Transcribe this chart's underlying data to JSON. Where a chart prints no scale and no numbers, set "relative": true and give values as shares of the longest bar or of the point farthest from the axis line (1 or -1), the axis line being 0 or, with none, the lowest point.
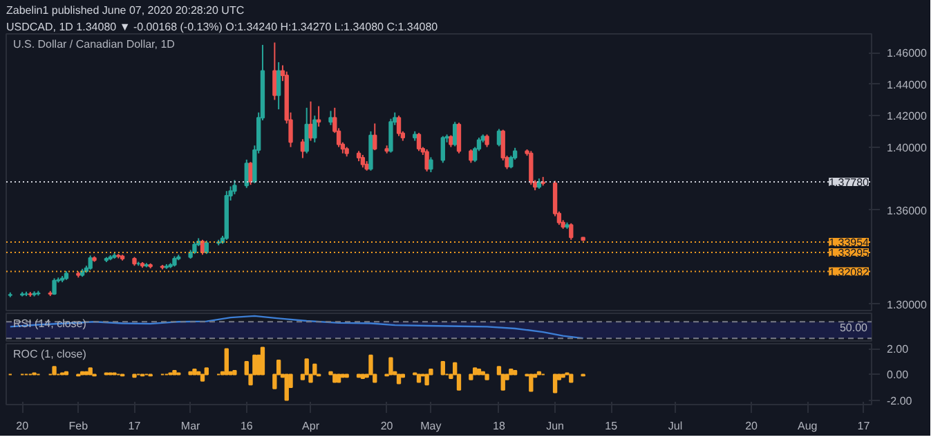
{
  "chart_data": [
    {
      "type": "candlestick",
      "title": "U.S. Dollar / Canadian Dollar, 1D",
      "annotations": [
        "Zabelin1 published June 07, 2020 20:28:20 UTC",
        "USDCAD, 1D 1.34080 ▼ -0.00168 (-0.13%) O:1.34240 H:1.34270 L:1.34080 C:1.34080"
      ],
      "x": [
        "2020-01-17",
        "2020-01-20",
        "2020-01-21",
        "2020-01-22",
        "2020-01-23",
        "2020-01-24",
        "2020-01-27",
        "2020-01-28",
        "2020-01-29",
        "2020-01-30",
        "2020-01-31",
        "2020-02-03",
        "2020-02-04",
        "2020-02-05",
        "2020-02-06",
        "2020-02-07",
        "2020-02-10",
        "2020-02-11",
        "2020-02-12",
        "2020-02-13",
        "2020-02-14",
        "2020-02-17",
        "2020-02-18",
        "2020-02-19",
        "2020-02-20",
        "2020-02-21",
        "2020-02-24",
        "2020-02-25",
        "2020-02-26",
        "2020-02-27",
        "2020-02-28",
        "2020-03-02",
        "2020-03-03",
        "2020-03-04",
        "2020-03-05",
        "2020-03-06",
        "2020-03-09",
        "2020-03-10",
        "2020-03-11",
        "2020-03-12",
        "2020-03-13",
        "2020-03-16",
        "2020-03-17",
        "2020-03-18",
        "2020-03-19",
        "2020-03-20",
        "2020-03-23",
        "2020-03-24",
        "2020-03-25",
        "2020-03-26",
        "2020-03-27",
        "2020-03-30",
        "2020-03-31",
        "2020-04-01",
        "2020-04-02",
        "2020-04-03",
        "2020-04-06",
        "2020-04-07",
        "2020-04-08",
        "2020-04-09",
        "2020-04-10",
        "2020-04-13",
        "2020-04-14",
        "2020-04-15",
        "2020-04-16",
        "2020-04-17",
        "2020-04-20",
        "2020-04-21",
        "2020-04-22",
        "2020-04-23",
        "2020-04-24",
        "2020-04-27",
        "2020-04-28",
        "2020-04-29",
        "2020-04-30",
        "2020-05-01",
        "2020-05-04",
        "2020-05-05",
        "2020-05-06",
        "2020-05-07",
        "2020-05-08",
        "2020-05-11",
        "2020-05-12",
        "2020-05-13",
        "2020-05-14",
        "2020-05-15",
        "2020-05-18",
        "2020-05-19",
        "2020-05-20",
        "2020-05-21",
        "2020-05-22",
        "2020-05-25",
        "2020-05-26",
        "2020-05-27",
        "2020-05-28",
        "2020-05-29",
        "2020-06-01",
        "2020-06-02",
        "2020-06-03",
        "2020-06-04",
        "2020-06-05",
        "2020-06-08"
      ],
      "ohlc": [
        [
          1.3058,
          1.3075,
          1.3045,
          1.306
        ],
        [
          1.306,
          1.3078,
          1.305,
          1.3064
        ],
        [
          1.3064,
          1.308,
          1.3052,
          1.3065
        ],
        [
          1.3065,
          1.3078,
          1.3048,
          1.3062
        ],
        [
          1.3062,
          1.3082,
          1.305,
          1.3068
        ],
        [
          1.3068,
          1.3085,
          1.3055,
          1.307
        ],
        [
          1.307,
          1.3084,
          1.3052,
          1.3066
        ],
        [
          1.3066,
          1.3165,
          1.306,
          1.315
        ],
        [
          1.315,
          1.317,
          1.3138,
          1.3155
        ],
        [
          1.3155,
          1.318,
          1.314,
          1.3165
        ],
        [
          1.3165,
          1.321,
          1.3155,
          1.3195
        ],
        [
          1.3195,
          1.3208,
          1.317,
          1.3185
        ],
        [
          1.3185,
          1.3225,
          1.3175,
          1.321
        ],
        [
          1.321,
          1.3245,
          1.32,
          1.323
        ],
        [
          1.323,
          1.331,
          1.322,
          1.3294
        ],
        [
          1.3294,
          1.3305,
          1.327,
          1.328
        ],
        [
          1.328,
          1.33,
          1.3268,
          1.329
        ],
        [
          1.329,
          1.3312,
          1.328,
          1.33
        ],
        [
          1.33,
          1.3325,
          1.329,
          1.331
        ],
        [
          1.331,
          1.332,
          1.3292,
          1.3305
        ],
        [
          1.3305,
          1.3315,
          1.3278,
          1.329
        ],
        [
          1.329,
          1.33,
          1.3245,
          1.3258
        ],
        [
          1.3258,
          1.327,
          1.3245,
          1.3258
        ],
        [
          1.3258,
          1.3268,
          1.3232,
          1.3245
        ],
        [
          1.3245,
          1.3262,
          1.3235,
          1.325
        ],
        [
          1.325,
          1.326,
          1.3228,
          1.324
        ],
        [
          1.324,
          1.325,
          1.3222,
          1.3235
        ],
        [
          1.3235,
          1.3255,
          1.3225,
          1.324
        ],
        [
          1.324,
          1.3262,
          1.323,
          1.325
        ],
        [
          1.325,
          1.3305,
          1.324,
          1.329
        ],
        [
          1.329,
          1.3315,
          1.328,
          1.33
        ],
        [
          1.33,
          1.3345,
          1.329,
          1.333
        ],
        [
          1.333,
          1.3395,
          1.332,
          1.338
        ],
        [
          1.338,
          1.342,
          1.337,
          1.34
        ],
        [
          1.34,
          1.341,
          1.3315,
          1.333
        ],
        [
          1.333,
          1.3405,
          1.332,
          1.339
        ],
        [
          1.339,
          1.341,
          1.3375,
          1.3395
        ],
        [
          1.3395,
          1.3435,
          1.3385,
          1.342
        ],
        [
          1.342,
          1.372,
          1.341,
          1.369
        ],
        [
          1.369,
          1.375,
          1.366,
          1.372
        ],
        [
          1.372,
          1.379,
          1.37,
          1.3755
        ],
        [
          1.3755,
          1.392,
          1.374,
          1.3896
        ],
        [
          1.3896,
          1.3905,
          1.376,
          1.378
        ],
        [
          1.378,
          1.401,
          1.377,
          1.3981
        ],
        [
          1.3981,
          1.422,
          1.396,
          1.4187
        ],
        [
          1.4187,
          1.465,
          1.417,
          1.4485
        ],
        [
          1.4485,
          1.4665,
          1.43,
          1.433
        ],
        [
          1.433,
          1.454,
          1.424,
          1.4485
        ],
        [
          1.4485,
          1.452,
          1.442,
          1.4456
        ],
        [
          1.4456,
          1.448,
          1.415,
          1.4172
        ],
        [
          1.4172,
          1.422,
          1.4,
          1.4031
        ],
        [
          1.4031,
          1.405,
          1.393,
          1.3974
        ],
        [
          1.3974,
          1.425,
          1.396,
          1.4144
        ],
        [
          1.4144,
          1.429,
          1.404,
          1.4059
        ],
        [
          1.4059,
          1.42,
          1.403,
          1.4172
        ],
        [
          1.4172,
          1.426,
          1.413,
          1.416
        ],
        [
          1.416,
          1.423,
          1.414,
          1.4187
        ],
        [
          1.4187,
          1.425,
          1.409,
          1.4101
        ],
        [
          1.4101,
          1.412,
          1.4,
          1.4017
        ],
        [
          1.4017,
          1.403,
          1.396,
          1.3988
        ],
        [
          1.3988,
          1.4,
          1.394,
          1.396
        ],
        [
          1.396,
          1.3975,
          1.391,
          1.3932
        ],
        [
          1.3932,
          1.395,
          1.387,
          1.3889
        ],
        [
          1.3889,
          1.391,
          1.385,
          1.3861
        ],
        [
          1.3861,
          1.41,
          1.385,
          1.4074
        ],
        [
          1.4074,
          1.415,
          1.398,
          1.3989
        ],
        [
          1.3989,
          1.401,
          1.396,
          1.3975
        ],
        [
          1.3975,
          1.418,
          1.3965,
          1.416
        ],
        [
          1.416,
          1.422,
          1.414,
          1.4187
        ],
        [
          1.4187,
          1.42,
          1.407,
          1.4087
        ],
        [
          1.4087,
          1.41,
          1.404,
          1.406
        ],
        [
          1.406,
          1.41,
          1.404,
          1.408
        ],
        [
          1.408,
          1.409,
          1.3975,
          1.399
        ],
        [
          1.399,
          1.4,
          1.395,
          1.397
        ],
        [
          1.397,
          1.3985,
          1.3845,
          1.3861
        ],
        [
          1.3861,
          1.3935,
          1.384,
          1.3917
        ],
        [
          1.3917,
          1.407,
          1.39,
          1.4059
        ],
        [
          1.4059,
          1.408,
          1.403,
          1.4065
        ],
        [
          1.4065,
          1.4075,
          1.4,
          1.4017
        ],
        [
          1.4017,
          1.416,
          1.4005,
          1.4144
        ],
        [
          1.4144,
          1.4155,
          1.396,
          1.3974
        ],
        [
          1.3974,
          1.3985,
          1.39,
          1.3917
        ],
        [
          1.3917,
          1.4,
          1.3905,
          1.3988
        ],
        [
          1.3988,
          1.406,
          1.3975,
          1.4045
        ],
        [
          1.4045,
          1.408,
          1.403,
          1.4068
        ],
        [
          1.4068,
          1.408,
          1.4,
          1.4017
        ],
        [
          1.4017,
          1.4115,
          1.4005,
          1.4101
        ],
        [
          1.4101,
          1.411,
          1.3915,
          1.3932
        ],
        [
          1.3932,
          1.3945,
          1.386,
          1.3875
        ],
        [
          1.3875,
          1.3945,
          1.3865,
          1.3932
        ],
        [
          1.3932,
          1.3995,
          1.392,
          1.3974
        ],
        [
          1.3974,
          1.3985,
          1.3945,
          1.396
        ],
        [
          1.396,
          1.3975,
          1.376,
          1.3776
        ],
        [
          1.3776,
          1.379,
          1.3725,
          1.3747
        ],
        [
          1.3747,
          1.38,
          1.3735,
          1.3776
        ],
        [
          1.3776,
          1.381,
          1.3755,
          1.377
        ],
        [
          1.377,
          1.3785,
          1.356,
          1.3577
        ],
        [
          1.3577,
          1.359,
          1.3505,
          1.352
        ],
        [
          1.352,
          1.3535,
          1.348,
          1.3492
        ],
        [
          1.3492,
          1.352,
          1.348,
          1.3505
        ],
        [
          1.3505,
          1.3515,
          1.341,
          1.3425
        ],
        [
          1.3424,
          1.3427,
          1.3408,
          1.3408
        ]
      ],
      "colors": [
        "#26a69a",
        "#26a69a",
        "#26a69a",
        "#ef5350",
        "#26a69a",
        "#26a69a",
        "#ef5350",
        "#26a69a",
        "#26a69a",
        "#26a69a",
        "#26a69a",
        "#ef5350",
        "#26a69a",
        "#26a69a",
        "#26a69a",
        "#ef5350",
        "#26a69a",
        "#26a69a",
        "#26a69a",
        "#ef5350",
        "#ef5350",
        "#ef5350",
        "#26a69a",
        "#ef5350",
        "#26a69a",
        "#ef5350",
        "#ef5350",
        "#26a69a",
        "#26a69a",
        "#26a69a",
        "#26a69a",
        "#26a69a",
        "#26a69a",
        "#26a69a",
        "#ef5350",
        "#26a69a",
        "#26a69a",
        "#26a69a",
        "#26a69a",
        "#26a69a",
        "#26a69a",
        "#26a69a",
        "#ef5350",
        "#26a69a",
        "#26a69a",
        "#26a69a",
        "#ef5350",
        "#26a69a",
        "#ef5350",
        "#ef5350",
        "#ef5350",
        "#ef5350",
        "#26a69a",
        "#ef5350",
        "#26a69a",
        "#ef5350",
        "#26a69a",
        "#ef5350",
        "#ef5350",
        "#ef5350",
        "#ef5350",
        "#ef5350",
        "#ef5350",
        "#ef5350",
        "#26a69a",
        "#ef5350",
        "#ef5350",
        "#26a69a",
        "#26a69a",
        "#ef5350",
        "#ef5350",
        "#26a69a",
        "#ef5350",
        "#ef5350",
        "#ef5350",
        "#26a69a",
        "#26a69a",
        "#26a69a",
        "#ef5350",
        "#26a69a",
        "#ef5350",
        "#ef5350",
        "#26a69a",
        "#26a69a",
        "#26a69a",
        "#ef5350",
        "#26a69a",
        "#ef5350",
        "#ef5350",
        "#26a69a",
        "#26a69a",
        "#ef5350",
        "#ef5350",
        "#ef5350",
        "#26a69a",
        "#ef5350",
        "#ef5350",
        "#ef5350",
        "#ef5350",
        "#26a69a",
        "#ef5350",
        "#ef5350"
      ],
      "xlim": [
        "2020-01-16",
        "2020-08-19"
      ],
      "ylim": [
        1.296,
        1.472
      ],
      "yticks": [
        {
          "value": 1.3,
          "label": "1.30000"
        },
        {
          "value": 1.36,
          "label": "1.36000"
        },
        {
          "value": 1.4,
          "label": "1.40000"
        },
        {
          "value": 1.42,
          "label": "1.42000"
        },
        {
          "value": 1.44,
          "label": "1.44000"
        },
        {
          "value": 1.46,
          "label": "1.46000"
        }
      ],
      "ref_lines": [
        {
          "axis": "y",
          "value": 1.3778,
          "label": "1.37780",
          "color": "#d1d4dc",
          "line_style": "dotted"
        },
        {
          "axis": "y",
          "value": 1.33954,
          "label": "1.33954",
          "color": "#f59d20",
          "line_style": "dotted"
        },
        {
          "axis": "y",
          "value": 1.33295,
          "label": "1.33295",
          "color": "#f59d20",
          "line_style": "dotted"
        },
        {
          "axis": "y",
          "value": 1.32082,
          "label": "1.32082",
          "color": "#f59d20",
          "line_style": "dotted"
        }
      ],
      "tick_labels": "y"
    },
    {
      "type": "line",
      "title": "RSI (14, close)",
      "relative": true,
      "annotations": [
        "50.00"
      ],
      "series": [
        {
          "color": "#3d7fd6",
          "x": [
            "2020-01-17",
            "2020-01-24",
            "2020-01-31",
            "2020-02-07",
            "2020-02-14",
            "2020-02-21",
            "2020-02-28",
            "2020-03-06",
            "2020-03-12",
            "2020-03-18",
            "2020-03-24",
            "2020-03-31",
            "2020-04-08",
            "2020-04-16",
            "2020-04-22",
            "2020-04-30",
            "2020-05-08",
            "2020-05-15",
            "2020-05-22",
            "2020-05-29",
            "2020-06-03",
            "2020-06-08"
          ],
          "values": [
            0.52,
            0.61,
            0.67,
            0.74,
            0.67,
            0.65,
            0.74,
            0.76,
            0.93,
            1,
            0.89,
            0.78,
            0.69,
            0.67,
            0.59,
            0.56,
            0.54,
            0.52,
            0.44,
            0.28,
            0.11,
            0
          ]
        }
      ],
      "xlim": [
        "2020-01-16",
        "2020-08-19"
      ],
      "bands": [
        {
          "axis": "y",
          "from": 0,
          "to": 0.74,
          "color": "#1c1f4d"
        }
      ],
      "ref_lines": [
        {
          "axis": "y",
          "value": 0.74,
          "color": "#787b86",
          "line_style": "dashed"
        },
        {
          "axis": "y",
          "value": 0,
          "color": "#787b86",
          "line_style": "dashed"
        }
      ],
      "tick_labels": false
    },
    {
      "type": "bar",
      "title": "ROC (1, close)",
      "x": [
        "2020-01-17",
        "2020-01-20",
        "2020-01-21",
        "2020-01-22",
        "2020-01-23",
        "2020-01-24",
        "2020-01-27",
        "2020-01-28",
        "2020-01-29",
        "2020-01-30",
        "2020-01-31",
        "2020-02-03",
        "2020-02-04",
        "2020-02-05",
        "2020-02-06",
        "2020-02-07",
        "2020-02-10",
        "2020-02-11",
        "2020-02-12",
        "2020-02-13",
        "2020-02-14",
        "2020-02-17",
        "2020-02-18",
        "2020-02-19",
        "2020-02-20",
        "2020-02-21",
        "2020-02-24",
        "2020-02-25",
        "2020-02-26",
        "2020-02-27",
        "2020-02-28",
        "2020-03-02",
        "2020-03-03",
        "2020-03-04",
        "2020-03-05",
        "2020-03-06",
        "2020-03-09",
        "2020-03-10",
        "2020-03-11",
        "2020-03-12",
        "2020-03-13",
        "2020-03-16",
        "2020-03-17",
        "2020-03-18",
        "2020-03-19",
        "2020-03-20",
        "2020-03-23",
        "2020-03-24",
        "2020-03-25",
        "2020-03-26",
        "2020-03-27",
        "2020-03-30",
        "2020-03-31",
        "2020-04-01",
        "2020-04-02",
        "2020-04-03",
        "2020-04-06",
        "2020-04-07",
        "2020-04-08",
        "2020-04-09",
        "2020-04-10",
        "2020-04-13",
        "2020-04-14",
        "2020-04-15",
        "2020-04-16",
        "2020-04-17",
        "2020-04-20",
        "2020-04-21",
        "2020-04-22",
        "2020-04-23",
        "2020-04-24",
        "2020-04-27",
        "2020-04-28",
        "2020-04-29",
        "2020-04-30",
        "2020-05-01",
        "2020-05-04",
        "2020-05-05",
        "2020-05-06",
        "2020-05-07",
        "2020-05-08",
        "2020-05-11",
        "2020-05-12",
        "2020-05-13",
        "2020-05-14",
        "2020-05-15",
        "2020-05-18",
        "2020-05-19",
        "2020-05-20",
        "2020-05-21",
        "2020-05-22",
        "2020-05-25",
        "2020-05-26",
        "2020-05-27",
        "2020-05-28",
        "2020-05-29",
        "2020-06-01",
        "2020-06-02",
        "2020-06-03",
        "2020-06-04",
        "2020-06-05",
        "2020-06-08"
      ],
      "series": [
        {
          "color": "#f5a623",
          "values": [
            0,
            0,
            0,
            0,
            0.1,
            0,
            0,
            0.6,
            0,
            0.1,
            0.2,
            -0.1,
            0.2,
            0.2,
            0.5,
            -0.1,
            0.1,
            0.1,
            0.1,
            0,
            -0.1,
            -0.2,
            0,
            -0.1,
            0,
            -0.1,
            0,
            0,
            0.1,
            0.3,
            0.1,
            0.2,
            0.4,
            0.2,
            -0.5,
            0.5,
            0,
            0.2,
            2.0,
            0.2,
            0.3,
            1.0,
            -0.8,
            1.5,
            1.5,
            2.1,
            -1.1,
            1.1,
            -0.2,
            -2.0,
            -1.0,
            -0.4,
            1.2,
            -0.6,
            0.8,
            -0.1,
            0.2,
            -0.6,
            -0.6,
            -0.2,
            -0.2,
            -0.2,
            -0.3,
            -0.2,
            1.5,
            -0.6,
            -0.1,
            1.3,
            0.2,
            -0.7,
            -0.2,
            0.1,
            -0.6,
            -0.1,
            -0.8,
            0.4,
            1.0,
            0,
            -0.3,
            0.9,
            -1.2,
            -0.4,
            0.5,
            0.4,
            0.2,
            -0.4,
            0.6,
            -1.2,
            -0.4,
            0.4,
            0.3,
            -0.1,
            -1.3,
            -0.2,
            0.2,
            0,
            -1.4,
            -0.4,
            -0.2,
            0.1,
            -0.6,
            -0.1
          ]
        }
      ],
      "xlim": [
        "2020-01-16",
        "2020-08-19"
      ],
      "xticks": [
        {
          "value": "2020-01-20",
          "label": "20"
        },
        {
          "value": "2020-02-03",
          "label": "Feb"
        },
        {
          "value": "2020-02-17",
          "label": "17"
        },
        {
          "value": "2020-03-02",
          "label": "Mar"
        },
        {
          "value": "2020-03-16",
          "label": "16"
        },
        {
          "value": "2020-04-01",
          "label": "Apr"
        },
        {
          "value": "2020-04-20",
          "label": "20"
        },
        {
          "value": "2020-05-01",
          "label": "May"
        },
        {
          "value": "2020-05-18",
          "label": "18"
        },
        {
          "value": "2020-06-01",
          "label": "Jun"
        },
        {
          "value": "2020-06-15",
          "label": "15"
        },
        {
          "value": "2020-07-01",
          "label": "Jul"
        },
        {
          "value": "2020-07-20",
          "label": "20"
        },
        {
          "value": "2020-08-03",
          "label": "Aug"
        },
        {
          "value": "2020-08-17",
          "label": "17"
        }
      ],
      "ylim": [
        -2.35,
        2.4
      ],
      "yticks": [
        {
          "value": 2,
          "label": "2.00"
        },
        {
          "value": 0,
          "label": "0.00"
        },
        {
          "value": -2,
          "label": "-2.00"
        }
      ]
    }
  ]
}
